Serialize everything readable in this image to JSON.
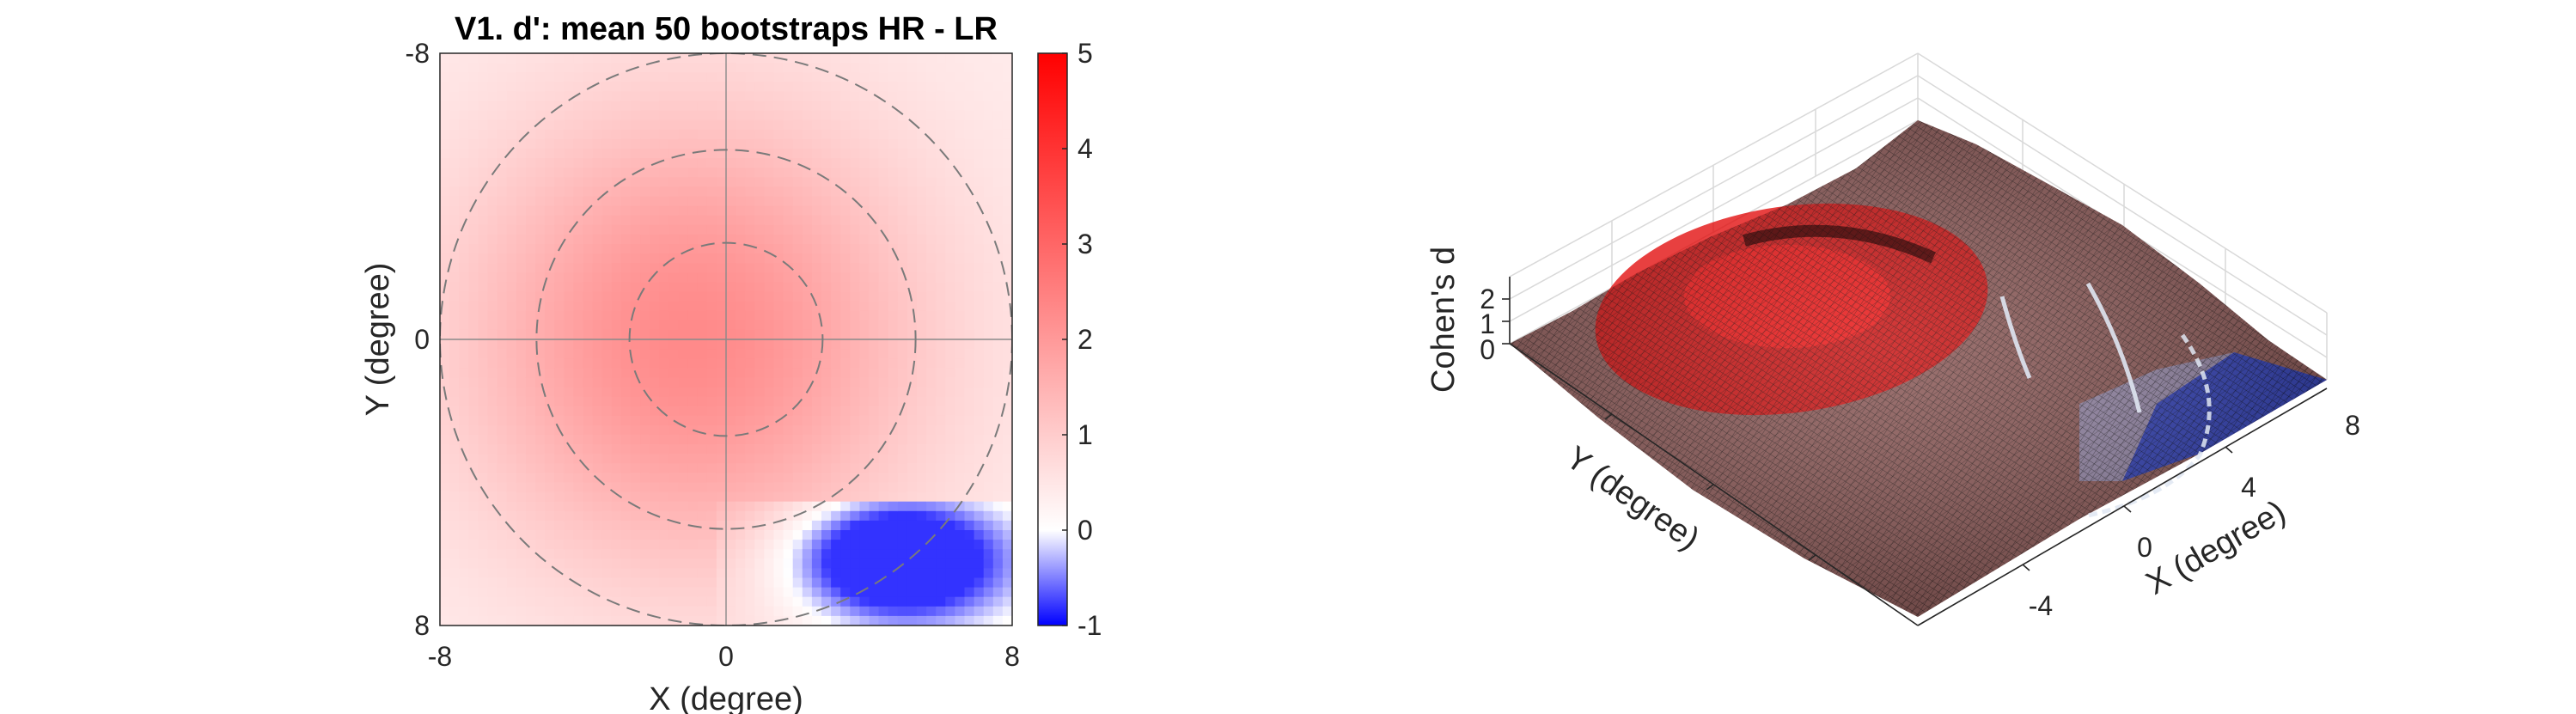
{
  "chart_data": [
    {
      "type": "heatmap",
      "title": "V1. d': mean 50 bootstraps HR - LR",
      "xlabel": "X (degree)",
      "ylabel": "Y (degree)",
      "xlim": [
        -8,
        8
      ],
      "ylim": [
        -8,
        8
      ],
      "y_direction": "reversed",
      "x_ticks": [
        "-8",
        "0",
        "8"
      ],
      "y_ticks": [
        "-8",
        "0",
        "8"
      ],
      "colorbar": {
        "range": [
          -1,
          5
        ],
        "ticks": [
          "5",
          "4",
          "3",
          "2",
          "1",
          "0",
          "-1"
        ],
        "colormap": [
          "#0000ff",
          "#ffffff",
          "#ff0000"
        ]
      },
      "guides": {
        "circle_radii": [
          2.7,
          5.3,
          8
        ],
        "crosshair": true
      },
      "field": {
        "peak_value": 2.3,
        "peak_location": [
          -1,
          0
        ],
        "low_region_center": [
          5,
          6.2
        ],
        "low_region_min": -0.8
      }
    },
    {
      "type": "surface",
      "zlabel": "Cohen's d",
      "xlabel": "X (degree)",
      "ylabel": "Y (degree)",
      "x_ticks": [
        "8",
        "4",
        "0",
        "-4"
      ],
      "z_ticks": [
        "2",
        "1",
        "0"
      ],
      "colormap": [
        "#0000b4",
        "#ffffff",
        "#ff0000"
      ],
      "grid": true
    }
  ]
}
